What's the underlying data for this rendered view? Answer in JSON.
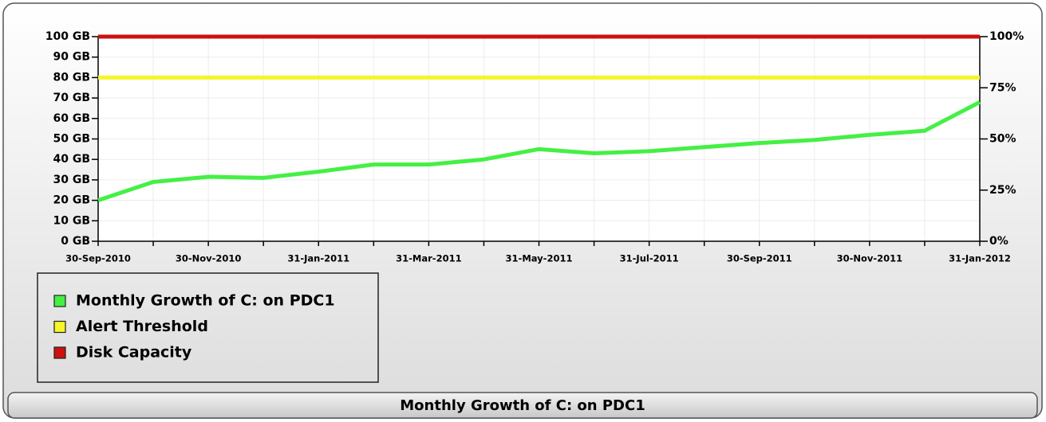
{
  "chart_data": {
    "type": "line",
    "title": "Monthly Growth of C: on PDC1",
    "categories": [
      "30-Sep-2010",
      null,
      "30-Nov-2010",
      null,
      "31-Jan-2011",
      null,
      "31-Mar-2011",
      null,
      "31-May-2011",
      null,
      "31-Jul-2011",
      null,
      "30-Sep-2011",
      null,
      "30-Nov-2011",
      null,
      "31-Jan-2012"
    ],
    "series": [
      {
        "name": "Monthly Growth of C: on PDC1",
        "color": "#44f044",
        "values": [
          20,
          29,
          31.5,
          31,
          34,
          37.5,
          37.5,
          40,
          45,
          43,
          44,
          46,
          48,
          49.5,
          52,
          54,
          68
        ]
      },
      {
        "name": "Alert Threshold",
        "color": "#f5f52a",
        "values": [
          80,
          80,
          80,
          80,
          80,
          80,
          80,
          80,
          80,
          80,
          80,
          80,
          80,
          80,
          80,
          80,
          80
        ]
      },
      {
        "name": "Disk Capacity",
        "color": "#cc1111",
        "values": [
          100,
          100,
          100,
          100,
          100,
          100,
          100,
          100,
          100,
          100,
          100,
          100,
          100,
          100,
          100,
          100,
          100
        ]
      }
    ],
    "ylim": [
      0,
      100
    ],
    "yticks": [
      {
        "value": 0,
        "label": "0 GB"
      },
      {
        "value": 10,
        "label": "10 GB"
      },
      {
        "value": 20,
        "label": "20 GB"
      },
      {
        "value": 30,
        "label": "30 GB"
      },
      {
        "value": 40,
        "label": "40 GB"
      },
      {
        "value": 50,
        "label": "50 GB"
      },
      {
        "value": 60,
        "label": "60 GB"
      },
      {
        "value": 70,
        "label": "70 GB"
      },
      {
        "value": 80,
        "label": "80 GB"
      },
      {
        "value": 90,
        "label": "90 GB"
      },
      {
        "value": 100,
        "label": "100 GB"
      }
    ],
    "y2lim": [
      0,
      100
    ],
    "y2ticks": [
      {
        "value": 0,
        "label": "0%"
      },
      {
        "value": 25,
        "label": "25%"
      },
      {
        "value": 50,
        "label": "50%"
      },
      {
        "value": 75,
        "label": "75%"
      },
      {
        "value": 100,
        "label": "100%"
      }
    ],
    "grid": true
  }
}
